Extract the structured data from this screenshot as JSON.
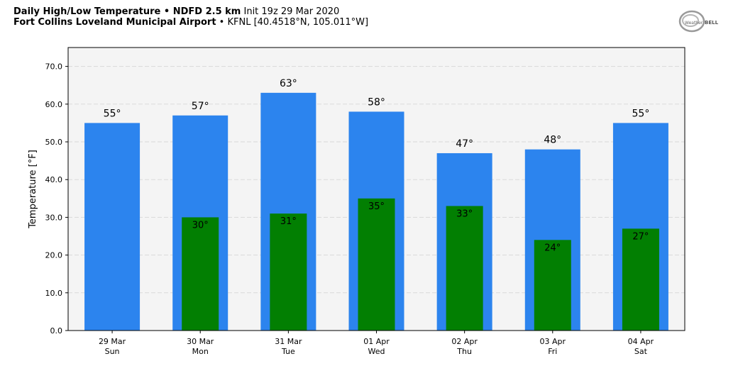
{
  "header": {
    "title_bold": "Daily High/Low Temperature • NDFD 2.5 km",
    "init_text": "Init 19z 29 Mar 2020",
    "location_bold": "Fort Collins Loveland Municipal Airport",
    "location_rest": "• KFNL [40.4518°N, 105.011°W]"
  },
  "logo": {
    "text_left": "Weather",
    "text_right": "BELL"
  },
  "colors": {
    "high": "#2c84ee",
    "low": "#027f02",
    "plot_bg": "#f4f4f4",
    "grid": "#d9d9d9"
  },
  "chart_data": {
    "type": "bar",
    "ylabel": "Temperature [°F]",
    "ylim": [
      0,
      75
    ],
    "yticks": [
      "0.0",
      "10.0",
      "20.0",
      "30.0",
      "40.0",
      "50.0",
      "60.0",
      "70.0"
    ],
    "categories": [
      "29 Mar",
      "30 Mar",
      "31 Mar",
      "01 Apr",
      "02 Apr",
      "03 Apr",
      "04 Apr"
    ],
    "weekdays": [
      "Sun",
      "Mon",
      "Tue",
      "Wed",
      "Thu",
      "Fri",
      "Sat"
    ],
    "grid": "horizontal dashed",
    "series": [
      {
        "key": "high",
        "values": [
          55,
          57,
          63,
          58,
          47,
          48,
          55
        ],
        "labels": [
          "55°",
          "57°",
          "63°",
          "58°",
          "47°",
          "48°",
          "55°"
        ]
      },
      {
        "key": "low",
        "values": [
          null,
          30,
          31,
          35,
          33,
          24,
          27
        ],
        "labels": [
          "",
          "30°",
          "31°",
          "35°",
          "33°",
          "24°",
          "27°"
        ]
      }
    ]
  }
}
